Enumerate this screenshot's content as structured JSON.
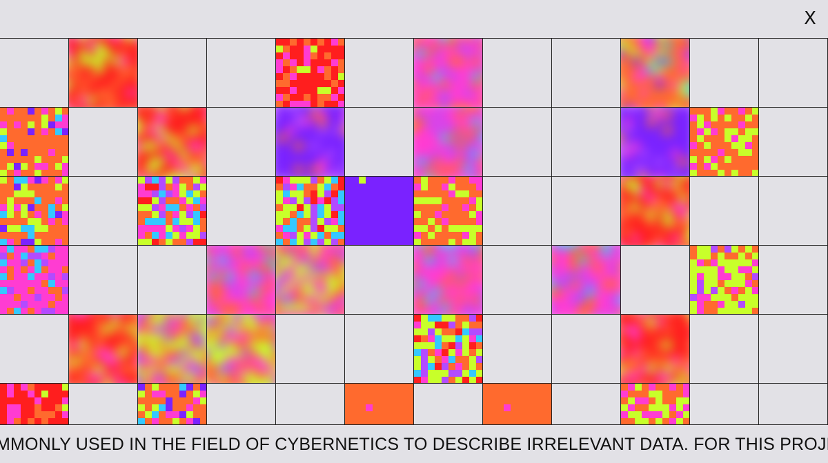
{
  "close_label": "X",
  "close_icon": "close-icon",
  "ticker_text": "MMONLY USED IN THE FIELD OF CYBERNETICS TO DESCRIBE IRRELEVANT DATA. FOR THIS PROJECT, IT",
  "palette": {
    "red": "#ff1e1e",
    "orange": "#ff6a2e",
    "pink": "#ff3cd2",
    "lime": "#c8ff2a",
    "violet": "#7a22ff",
    "purple": "#b24bff",
    "cyan": "#34c8ff",
    "empty": "#e2e1e6"
  },
  "tiles": [
    [
      "empty",
      "red-blur",
      "empty",
      "empty",
      "red-noise",
      "empty",
      "pink-blur",
      "empty",
      "empty",
      "orange-blur",
      "empty"
    ],
    [
      "orange-noise",
      "empty",
      "red-blur",
      "empty",
      "violet-blur",
      "empty",
      "pink-blur",
      "empty",
      "empty",
      "violet-blur",
      "orange-lime"
    ],
    [
      "orange-noise",
      "empty",
      "mix-noise",
      "empty",
      "mix-noise",
      "violet-solid",
      "orange-lime",
      "empty",
      "empty",
      "red-blur",
      "empty"
    ],
    [
      "pink-noise",
      "empty",
      "empty",
      "pink-blur",
      "lime-blur",
      "empty",
      "pink-blur",
      "empty",
      "pink-blur",
      "empty",
      "lime-orange"
    ],
    [
      "empty",
      "red-blur",
      "lime-blur",
      "lime-blur",
      "empty",
      "empty",
      "mix-noise",
      "empty",
      "empty",
      "red-blur",
      "empty"
    ],
    [
      "red-noise",
      "empty",
      "orange-noise",
      "empty",
      "empty",
      "orange-solid",
      "empty",
      "orange-solid",
      "empty",
      "orange-lime",
      "empty"
    ]
  ]
}
